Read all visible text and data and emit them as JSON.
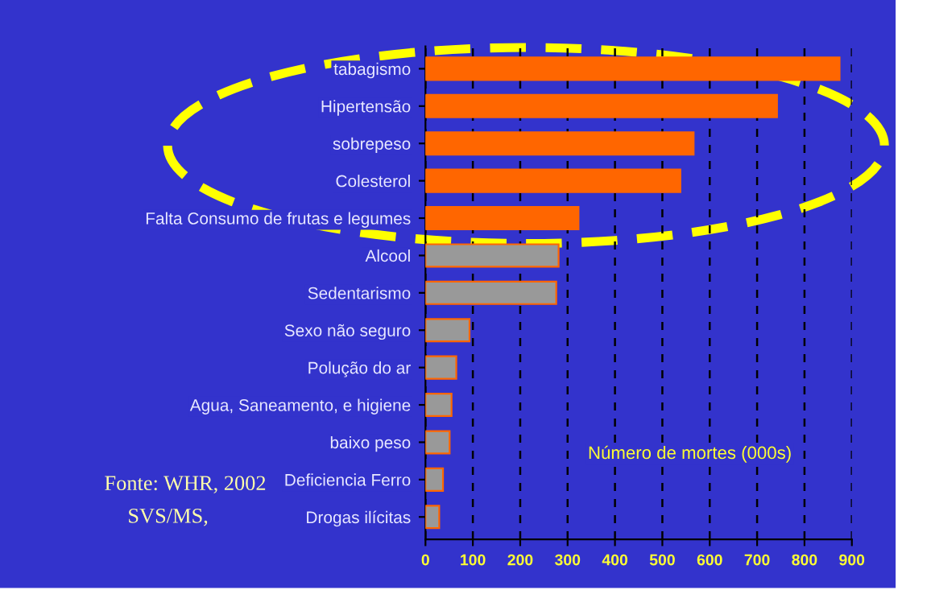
{
  "chart_data": {
    "type": "bar",
    "orientation": "horizontal",
    "categories": [
      "tabagismo",
      "Hipertensão",
      "sobrepeso",
      "Colesterol",
      "Falta Consumo de frutas e legumes",
      "Alcool",
      "Sedentarismo",
      "Sexo não seguro",
      "Polução do ar",
      "Agua, Saneamento, e higiene",
      "baixo peso",
      "Deficiencia Ferro",
      "Drogas ilícitas"
    ],
    "values": [
      874,
      742,
      566,
      538,
      323,
      281,
      276,
      93,
      65,
      55,
      51,
      37,
      29
    ],
    "colors": [
      "#ff6600",
      "#ff6600",
      "#ff6600",
      "#ff6600",
      "#ff6600",
      "#999999",
      "#999999",
      "#999999",
      "#999999",
      "#999999",
      "#999999",
      "#999999",
      "#999999"
    ],
    "xlim": [
      0,
      900
    ],
    "xticks": [
      0,
      100,
      200,
      300,
      400,
      500,
      600,
      700,
      800,
      900
    ],
    "grid": "x",
    "xlabel": "Número de mortes (000s)",
    "annotations": [
      "Fonte: WHR, 2002",
      "SVS/MS,"
    ]
  }
}
